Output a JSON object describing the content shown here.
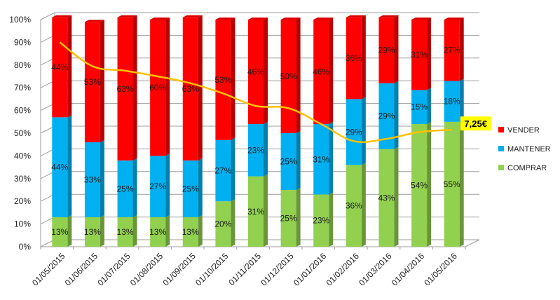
{
  "chart_data": {
    "type": "bar",
    "stacked": true,
    "categories": [
      "01/05/2015",
      "01/06/2015",
      "01/07/2015",
      "01/08/2015",
      "01/09/2015",
      "01/10/2015",
      "01/11/2015",
      "01/12/2015",
      "01/01/2016",
      "01/02/2016",
      "01/03/2016",
      "01/04/2016",
      "01/05/2016"
    ],
    "series": [
      {
        "name": "COMPRAR",
        "color": "#92d050",
        "values": [
          13,
          13,
          13,
          13,
          13,
          20,
          31,
          25,
          23,
          36,
          43,
          54,
          55
        ]
      },
      {
        "name": "MANTENER",
        "color": "#00b0f0",
        "values": [
          44,
          33,
          25,
          27,
          25,
          27,
          23,
          25,
          31,
          29,
          29,
          15,
          18
        ]
      },
      {
        "name": "VENDER",
        "color": "#ff0000",
        "values": [
          44,
          53,
          63,
          60,
          63,
          53,
          46,
          50,
          46,
          36,
          29,
          31,
          27
        ]
      }
    ],
    "line": {
      "color": "#ffc000",
      "values": [
        90,
        79.5,
        77.5,
        75,
        72,
        67.5,
        62,
        61,
        54,
        46.5,
        47.5,
        50.5,
        51.5
      ],
      "end_label": "7,25€",
      "end_label_bg": "#ffff00"
    },
    "y_ticks": [
      "0%",
      "10%",
      "20%",
      "30%",
      "40%",
      "50%",
      "60%",
      "70%",
      "80%",
      "90%",
      "100%"
    ],
    "ylim": [
      0,
      100
    ],
    "legend_position": "right",
    "title": "",
    "xlabel": "",
    "ylabel": ""
  }
}
